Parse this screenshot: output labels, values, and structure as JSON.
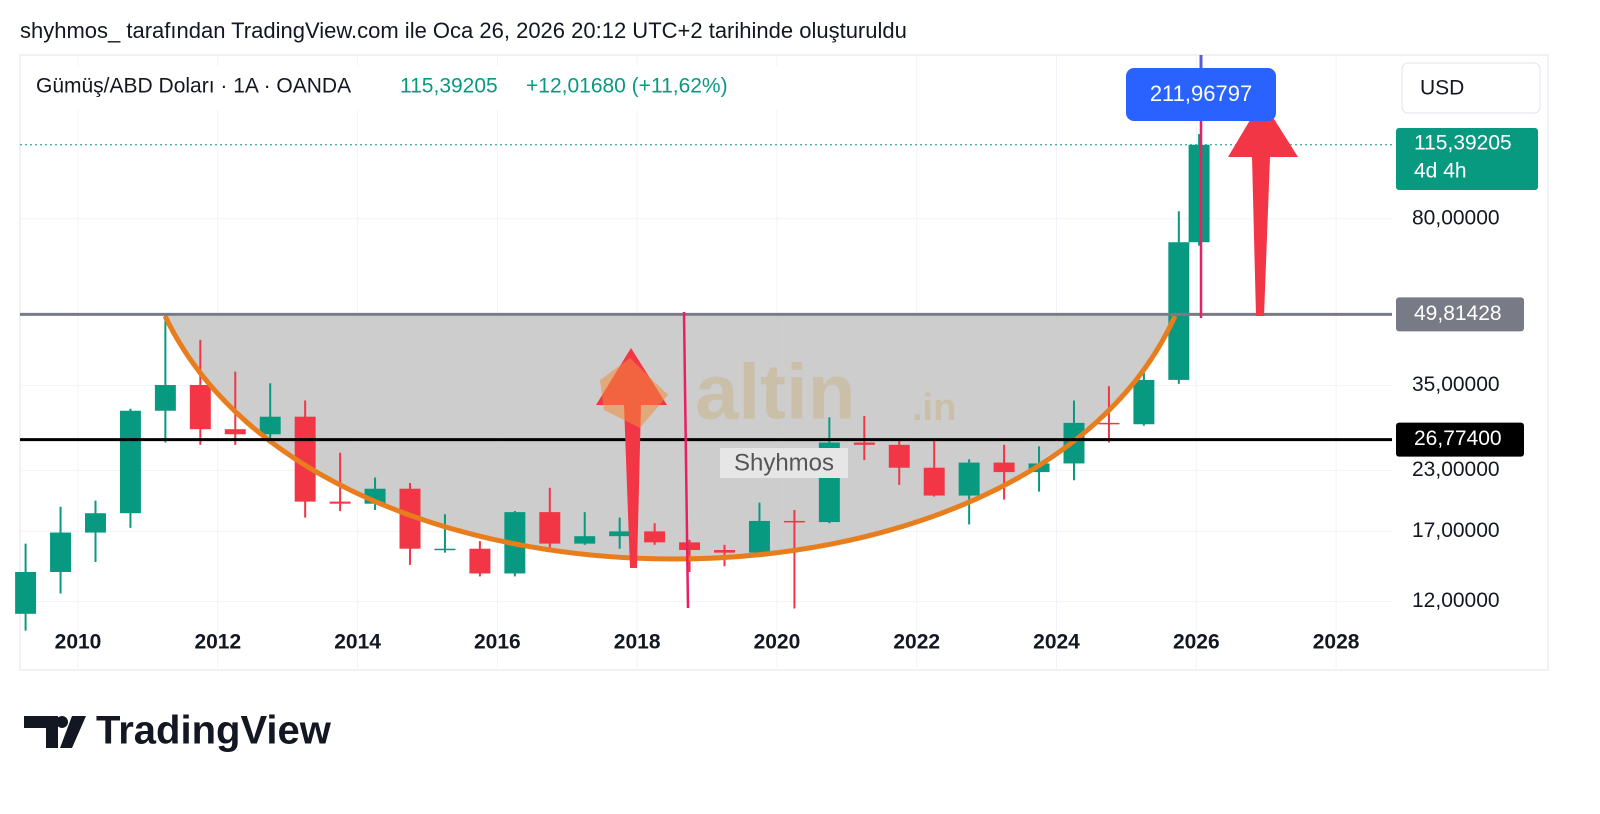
{
  "caption": "shyhmos_ tarafından TradingView.com ile Oca 26, 2026 20:12 UTC+2 tarihinde oluşturuldu",
  "header": {
    "symbol": "Gümüş/ABD Doları · 1A · OANDA",
    "price": "115,39205",
    "change": "+12,01680 (+11,62%)",
    "currency": "USD"
  },
  "brand": "TradingView",
  "chart_data": {
    "type": "candlestick",
    "x": [
      2009.25,
      2009.75,
      2010.25,
      2010.75,
      2011.25,
      2011.75,
      2012.25,
      2012.75,
      2013.25,
      2013.75,
      2014.25,
      2014.75,
      2015.25,
      2015.75,
      2016.25,
      2016.75,
      2017.25,
      2017.75,
      2018.25,
      2018.75,
      2019.25,
      2019.75,
      2020.25,
      2020.75,
      2021.25,
      2021.75,
      2022.25,
      2022.75,
      2023.25,
      2023.75,
      2024.25,
      2024.75,
      2025.25,
      2025.75,
      2026.04
    ],
    "open": [
      11.3,
      13.9,
      16.9,
      18.6,
      30.9,
      35.1,
      28.2,
      27.5,
      30.0,
      19.7,
      19.5,
      21.0,
      15.6,
      15.6,
      13.8,
      18.7,
      16.0,
      16.6,
      17.0,
      16.1,
      15.5,
      15.3,
      17.9,
      17.8,
      26.4,
      26.1,
      23.3,
      20.3,
      23.9,
      22.8,
      23.8,
      29.1,
      28.9,
      36.0,
      71.2
    ],
    "high": [
      16.0,
      19.2,
      19.8,
      31.2,
      49.8,
      43.9,
      37.5,
      35.4,
      32.5,
      25.1,
      22.2,
      21.6,
      18.5,
      16.2,
      18.8,
      21.1,
      18.7,
      18.2,
      17.7,
      16.3,
      15.9,
      19.6,
      18.9,
      29.9,
      30.1,
      26.7,
      26.9,
      24.3,
      26.1,
      25.9,
      32.5,
      34.9,
      37.3,
      83.0,
      121.6
    ],
    "low": [
      10.4,
      12.5,
      14.6,
      17.3,
      26.4,
      26.1,
      26.1,
      26.2,
      18.2,
      18.8,
      18.9,
      14.4,
      15.3,
      13.6,
      13.6,
      15.6,
      15.9,
      15.6,
      15.9,
      13.9,
      14.3,
      15.1,
      11.6,
      17.7,
      24.2,
      21.4,
      20.2,
      17.6,
      19.9,
      20.7,
      21.9,
      26.4,
      28.7,
      35.3,
      70.0
    ],
    "close": [
      13.9,
      16.9,
      18.6,
      30.9,
      35.1,
      28.2,
      27.5,
      30.0,
      19.7,
      19.5,
      21.0,
      15.6,
      15.6,
      13.8,
      18.7,
      16.0,
      16.6,
      17.0,
      16.1,
      15.5,
      15.3,
      17.9,
      17.8,
      26.4,
      26.1,
      23.3,
      20.3,
      23.9,
      22.8,
      23.8,
      29.1,
      28.9,
      36.0,
      71.2,
      115.39205
    ],
    "up_color": "#089981",
    "down_color": "#f23645",
    "log_scale": true,
    "grid": true,
    "xlim": [
      2009.17,
      2028.8
    ],
    "xticks": [
      2010,
      2012,
      2014,
      2016,
      2018,
      2020,
      2022,
      2024,
      2026,
      2028
    ],
    "ylim": [
      8.64,
      180
    ],
    "yticks": [
      {
        "value": 12,
        "label": "12,00000"
      },
      {
        "value": 17,
        "label": "17,00000"
      },
      {
        "value": 23,
        "label": "23,00000"
      },
      {
        "value": 35,
        "label": "35,00000"
      },
      {
        "value": 80,
        "label": "80,00000"
      }
    ],
    "levels": [
      {
        "value": 49.81428,
        "label": "49,81428",
        "color": "#787b86"
      },
      {
        "value": 26.774,
        "label": "26,77400",
        "color": "#000000"
      }
    ],
    "last_price": {
      "value": 115.39205,
      "label": "115,39205",
      "countdown": "4d 4h",
      "color": "#089981"
    },
    "annotations": {
      "measure_label": "211,96797",
      "watermark": "altin",
      "watermark_suffix": ".in",
      "author": "Shyhmos"
    }
  }
}
